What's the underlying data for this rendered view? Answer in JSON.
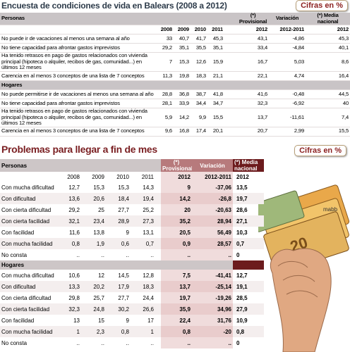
{
  "survey": {
    "title": "Encuesta de condiciones de vida en Balears (2008 a 2012)",
    "badge": "Cifras en %",
    "column_groups": [
      "(*) Provisional",
      "Variación",
      "(*) Media nacional"
    ],
    "years": [
      "2008",
      "2009",
      "2010",
      "2011",
      "2012",
      "2012-2011",
      "2012"
    ],
    "sections": [
      {
        "name": "Personas",
        "rows": [
          {
            "label": "No puede  ir de vacaciones al menos una semana al año",
            "values": [
              "33",
              "40,7",
              "41,7",
              "45,3",
              "43,1",
              "-4,86",
              "45,3"
            ]
          },
          {
            "label": "No tiene capacidad para afrontar gastos imprevistos",
            "values": [
              "29,2",
              "35,1",
              "35,5",
              "35,1",
              "33,4",
              "-4,84",
              "40,1"
            ]
          },
          {
            "label": "Ha tenido retrasos en pago de gastos relacionados con vivienda principal (hipoteca o alquiler, recibos de gas, comunidad...) en últimos 12 meses",
            "values": [
              "7",
              "15,3",
              "12,6",
              "15,9",
              "16,7",
              "5,03",
              "8,6"
            ]
          },
          {
            "label": "Carencia en al menos 3 conceptos de una lista de 7 conceptos",
            "values": [
              "11,3",
              "19,8",
              "18,3",
              "21,1",
              "22,1",
              "4,74",
              "16,4"
            ]
          }
        ]
      },
      {
        "name": "Hogares",
        "rows": [
          {
            "label": "No puede permitirse ir de vacaciones al menos una semana al año",
            "values": [
              "28,8",
              "36,8",
              "38,7",
              "41,8",
              "41,6",
              "-0,48",
              "44,5"
            ]
          },
          {
            "label": "No tiene capacidad para afrontar gastos imprevistos",
            "values": [
              "28,1",
              "33,9",
              "34,4",
              "34,7",
              "32,3",
              "-6,92",
              "40"
            ]
          },
          {
            "label": "Ha tenido retrasos en pago de gastos relacionados con vivienda principal (hipoteca o alquiler, recibos de gas, comunidad...) en últimos 12 meses",
            "values": [
              "5,9",
              "14,2",
              "9,9",
              "15,5",
              "13,7",
              "-11,61",
              "7,4"
            ]
          },
          {
            "label": "Carencia en al menos 3 conceptos de una lista de 7 conceptos",
            "values": [
              "9,6",
              "16,8",
              "17,4",
              "20,1",
              "20,7",
              "2,99",
              "15,5"
            ]
          }
        ]
      }
    ]
  },
  "problems": {
    "title": "Problemas para llegar a fin de mes",
    "badge": "Cifras en %",
    "credit": "mabb",
    "column_groups": [
      "(*) Provisional",
      "Variación",
      "(*) Media nacional"
    ],
    "years": [
      "2008",
      "2009",
      "2010",
      "2011",
      "2012",
      "2012-2011",
      "2012"
    ],
    "sections": [
      {
        "name": "Personas",
        "rows": [
          {
            "label": "Con mucha dificultad",
            "values": [
              "12,7",
              "15,3",
              "15,3",
              "14,3",
              "9",
              "-37,06",
              "13,5"
            ]
          },
          {
            "label": "Con dificultad",
            "values": [
              "13,6",
              "20,6",
              "18,4",
              "19,4",
              "14,2",
              "-26,8",
              "19,7"
            ]
          },
          {
            "label": "Con cierta dificultad",
            "values": [
              "29,2",
              "25",
              "27,7",
              "25,2",
              "20",
              "-20,63",
              "28,6"
            ]
          },
          {
            "label": "Con cierta facilidad",
            "values": [
              "32,1",
              "23,4",
              "28,9",
              "27,3",
              "35,2",
              "28,94",
              "27,1"
            ]
          },
          {
            "label": "Con facilidad",
            "values": [
              "11,6",
              "13,8",
              "9",
              "13,1",
              "20,5",
              "56,49",
              "10,3"
            ]
          },
          {
            "label": "Con mucha facilidad",
            "values": [
              "0,8",
              "1,9",
              "0,6",
              "0,7",
              "0,9",
              "28,57",
              "0,7"
            ]
          },
          {
            "label": "No consta",
            "values": [
              "..",
              "..",
              "..",
              "..",
              "..",
              "..",
              "0"
            ]
          }
        ]
      },
      {
        "name": "Hogares",
        "rows": [
          {
            "label": "Con mucha dificultad",
            "values": [
              "10,6",
              "12",
              "14,5",
              "12,8",
              "7,5",
              "-41,41",
              "12,7"
            ]
          },
          {
            "label": "Con dificultad",
            "values": [
              "13,3",
              "20,2",
              "17,9",
              "18,3",
              "13,7",
              "-25,14",
              "19,1"
            ]
          },
          {
            "label": "Con cierta dificultad",
            "values": [
              "29,8",
              "25,7",
              "27,7",
              "24,4",
              "19,7",
              "-19,26",
              "28,5"
            ]
          },
          {
            "label": "Con cierta facilidad",
            "values": [
              "32,3",
              "24,8",
              "30,2",
              "26,6",
              "35,9",
              "34,96",
              "27,9"
            ]
          },
          {
            "label": "Con facilidad",
            "values": [
              "13",
              "15",
              "9",
              "17",
              "22,4",
              "31,76",
              "10,9"
            ]
          },
          {
            "label": "Con mucha facilidad",
            "values": [
              "1",
              "2,3",
              "0,8",
              "1",
              "0,8",
              "-20",
              "0,8"
            ]
          },
          {
            "label": "No consta",
            "values": [
              "..",
              "..",
              "..",
              "..",
              "..",
              "..",
              "0"
            ]
          }
        ]
      }
    ]
  }
}
